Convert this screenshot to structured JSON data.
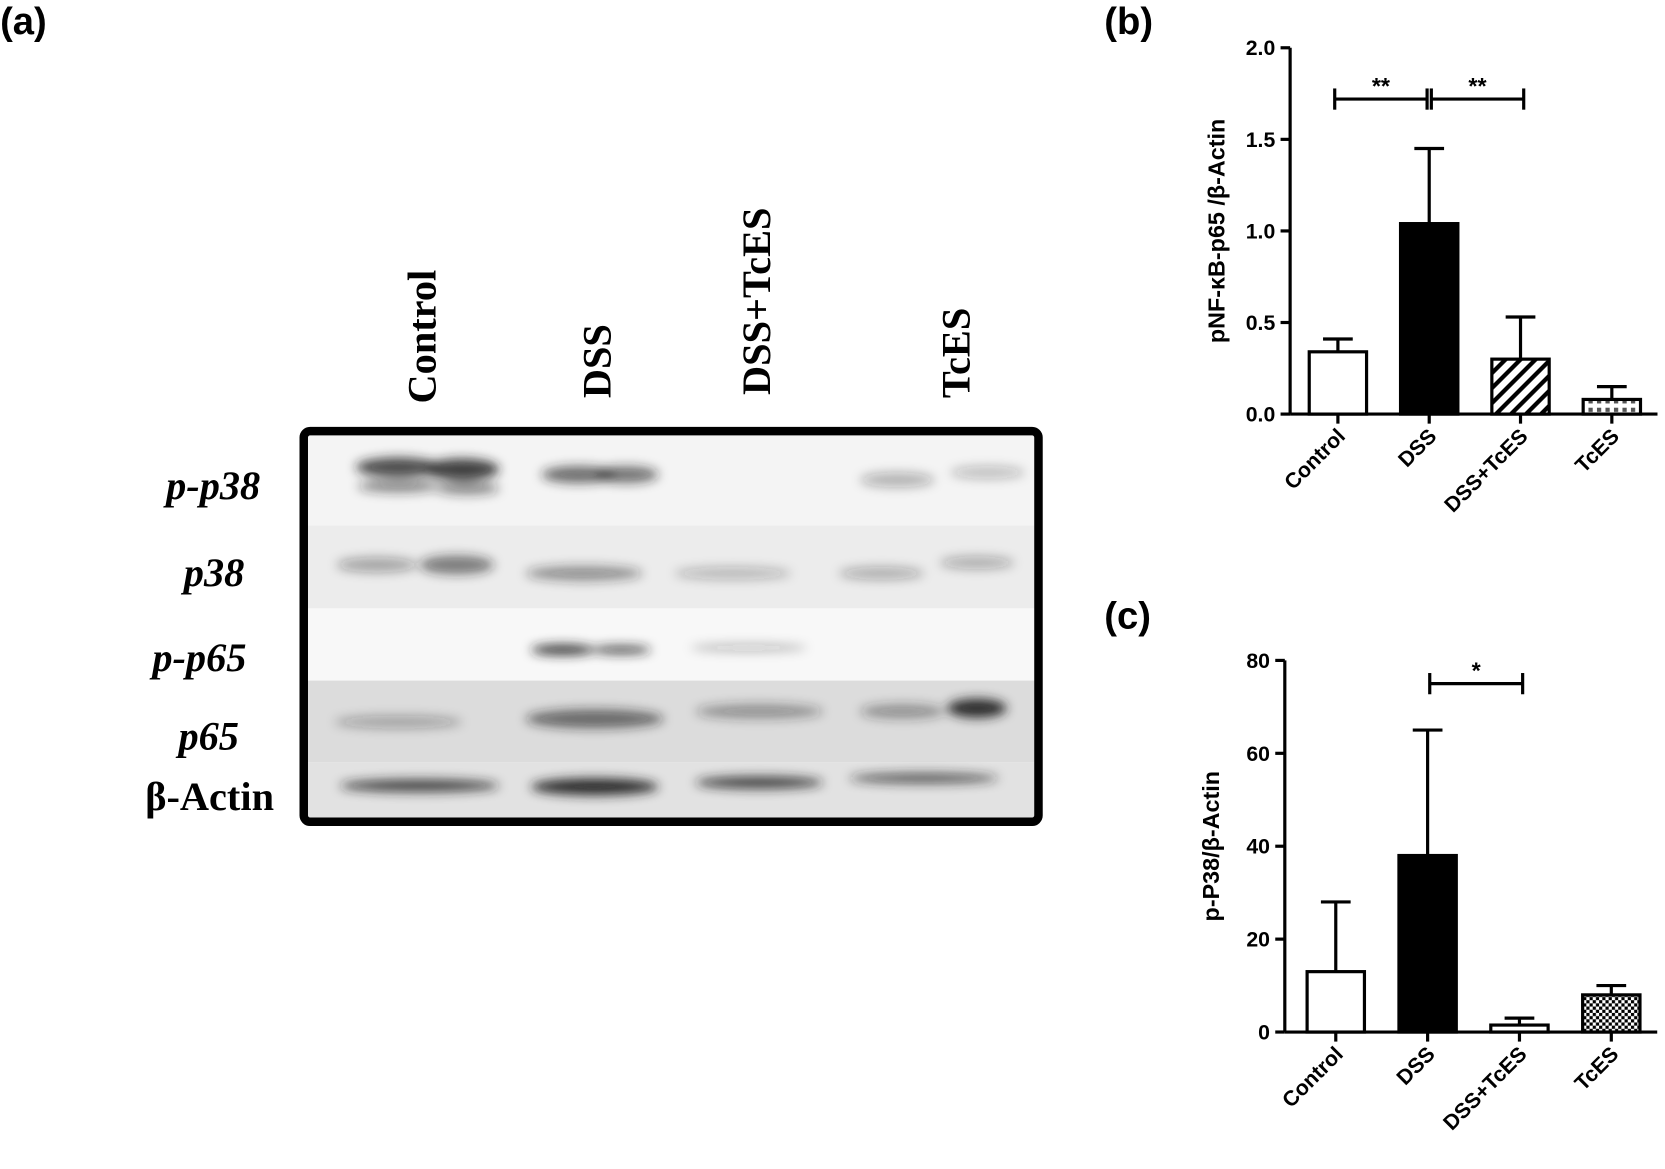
{
  "blot": {
    "panel_label": "(a)",
    "lanes": [
      "Control",
      "DSS",
      "DSS+TcES",
      "TcES"
    ],
    "proteins": [
      "p-p38",
      "p38",
      "p-p65",
      "p65",
      "β-Actin"
    ]
  },
  "chart_data": [
    {
      "type": "bar",
      "panel_label": "(b)",
      "y_label": "pNF-κB-p65 /β-Actin",
      "categories": [
        "Control",
        "DSS",
        "DSS+TcES",
        "TcES"
      ],
      "values": [
        0.34,
        1.04,
        0.3,
        0.08
      ],
      "errors": [
        0.07,
        0.41,
        0.23,
        0.07
      ],
      "patterns": [
        "white",
        "black",
        "hatch",
        "dots"
      ],
      "ylim": [
        0,
        2
      ],
      "yticks": [
        {
          "value": 0,
          "label": "0.0"
        },
        {
          "value": 0.5,
          "label": "0.5"
        },
        {
          "value": 1,
          "label": "1.0"
        },
        {
          "value": 1.5,
          "label": "1.5"
        },
        {
          "value": 2,
          "label": "2.0"
        }
      ],
      "annotations": [
        {
          "text": "**",
          "from": 0,
          "to": 1,
          "y": 1.72
        },
        {
          "text": "**",
          "from": 1,
          "to": 2,
          "y": 1.72
        }
      ]
    },
    {
      "type": "bar",
      "panel_label": "(c)",
      "y_label": "p-P38/β-Actin",
      "categories": [
        "Control",
        "DSS",
        "DSS+TcES",
        "TcES"
      ],
      "values": [
        13,
        38,
        1.5,
        8
      ],
      "errors": [
        15,
        27,
        1.5,
        2
      ],
      "patterns": [
        "white",
        "black",
        "white",
        "check"
      ],
      "ylim": [
        0,
        80
      ],
      "yticks": [
        0,
        20,
        40,
        60,
        80
      ],
      "annotations": [
        {
          "text": "*",
          "from": 1,
          "to": 2,
          "y": 75
        }
      ]
    }
  ]
}
